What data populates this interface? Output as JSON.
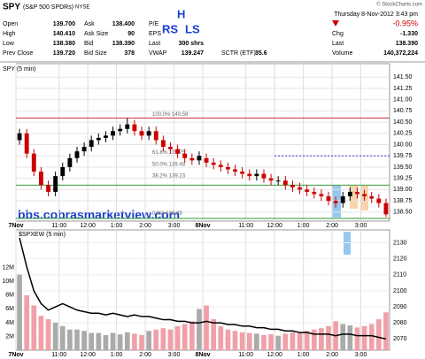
{
  "header": {
    "symbol": "SPY",
    "name": "(S&P 500 SPDRs)",
    "exchange": "NYSE",
    "copyright": "© StockCharts.com",
    "datetime": "Thursday  8-Nov-2012  3:43 pm",
    "change_pct": "-0.95%",
    "fields": [
      [
        "Open",
        "139.700"
      ],
      [
        "High",
        "140.410"
      ],
      [
        "Low",
        "138.380"
      ],
      [
        "Prev Close",
        "139.720"
      ],
      [
        "Ask",
        "138.400"
      ],
      [
        "Ask Size",
        "90"
      ],
      [
        "Bid",
        "138.390"
      ],
      [
        "Bid Size",
        "378"
      ],
      [
        "P/E"
      ],
      [
        "EPS"
      ],
      [
        "Last",
        "300 shrs"
      ],
      [
        "VWAP",
        "139.247"
      ],
      [
        "SCTR (ETF):",
        "35.6"
      ],
      [
        "Chg",
        "-1.330"
      ],
      [
        "Last",
        "138.390"
      ],
      [
        "Volume",
        "140,372,224"
      ]
    ],
    "overlay_labels": [
      "H",
      "RS",
      "LS"
    ],
    "watermark": "bbs.cobrasmarketview.com"
  },
  "chart_data": [
    {
      "type": "candlestick",
      "panel_label": "SPY (5 min)",
      "colors": {
        "up": "#000000",
        "down": "#cc0000"
      },
      "open": [
        140.1,
        140.25,
        139.8,
        139.4,
        139.1,
        138.95,
        139.3,
        139.5,
        139.7,
        139.85,
        139.95,
        140.1,
        140.15,
        140.2,
        140.3,
        140.35,
        140.45,
        140.3,
        140.2,
        140.3,
        140.1,
        139.95,
        139.9,
        139.8,
        139.7,
        139.65,
        139.7,
        139.6,
        139.55,
        139.5,
        139.45,
        139.4,
        139.35,
        139.3,
        139.35,
        139.25,
        139.2,
        139.2,
        139.1,
        139.05,
        139.0,
        138.95,
        138.9,
        138.85,
        138.75,
        138.7,
        138.85,
        138.95,
        138.9,
        138.85,
        138.8,
        138.7
      ],
      "high": [
        140.35,
        140.35,
        139.9,
        139.5,
        139.2,
        139.4,
        139.6,
        139.8,
        139.95,
        140.05,
        140.2,
        140.25,
        140.3,
        140.4,
        140.45,
        140.59,
        140.55,
        140.4,
        140.4,
        140.4,
        140.2,
        140.05,
        140.0,
        139.9,
        139.8,
        139.85,
        139.8,
        139.7,
        139.65,
        139.6,
        139.55,
        139.5,
        139.45,
        139.45,
        139.45,
        139.35,
        139.3,
        139.3,
        139.2,
        139.15,
        139.1,
        139.05,
        139.0,
        138.95,
        138.85,
        138.95,
        139.05,
        139.05,
        139.0,
        138.95,
        138.9,
        138.8
      ],
      "low": [
        140.0,
        139.7,
        139.3,
        139.0,
        138.85,
        138.85,
        139.2,
        139.4,
        139.6,
        139.75,
        139.85,
        140.0,
        140.05,
        140.1,
        140.2,
        140.25,
        140.2,
        140.1,
        140.1,
        140.0,
        139.85,
        139.8,
        139.7,
        139.6,
        139.55,
        139.55,
        139.5,
        139.45,
        139.4,
        139.35,
        139.3,
        139.25,
        139.2,
        139.2,
        139.15,
        139.1,
        139.1,
        139.0,
        138.95,
        138.9,
        138.85,
        138.8,
        138.75,
        138.65,
        138.6,
        138.6,
        138.75,
        138.8,
        138.75,
        138.7,
        138.6,
        138.39
      ],
      "close": [
        140.25,
        139.8,
        139.4,
        139.1,
        138.95,
        139.3,
        139.5,
        139.7,
        139.85,
        139.95,
        140.1,
        140.15,
        140.2,
        140.3,
        140.35,
        140.45,
        140.3,
        140.2,
        140.3,
        140.1,
        139.95,
        139.9,
        139.8,
        139.7,
        139.65,
        139.75,
        139.6,
        139.55,
        139.5,
        139.45,
        139.4,
        139.35,
        139.3,
        139.35,
        139.25,
        139.2,
        139.2,
        139.1,
        139.05,
        139.0,
        138.95,
        138.9,
        138.85,
        138.75,
        138.7,
        138.85,
        138.95,
        138.9,
        138.85,
        138.8,
        138.7,
        138.45
      ],
      "xlim": [
        0,
        52
      ],
      "xticks": [
        {
          "value": 0,
          "label": "7Nov"
        },
        {
          "value": 6,
          "label": "11:00"
        },
        {
          "value": 10,
          "label": "12:00"
        },
        {
          "value": 14,
          "label": "1:00"
        },
        {
          "value": 18,
          "label": "2:00"
        },
        {
          "value": 22,
          "label": "3:00"
        },
        {
          "value": 26,
          "label": "8Nov"
        },
        {
          "value": 32,
          "label": "11:00"
        },
        {
          "value": 36,
          "label": "12:00"
        },
        {
          "value": 40,
          "label": "1:00"
        },
        {
          "value": 44,
          "label": "2:00"
        },
        {
          "value": 48,
          "label": "3:00"
        }
      ],
      "ylim": [
        138.3,
        141.8
      ],
      "yticks": [
        {
          "value": 138.5,
          "label": "138.50"
        },
        {
          "value": 138.75,
          "label": "138.75"
        },
        {
          "value": 139,
          "label": "139.00"
        },
        {
          "value": 139.25,
          "label": "139.25"
        },
        {
          "value": 139.5,
          "label": "139.50"
        },
        {
          "value": 139.75,
          "label": "139.75"
        },
        {
          "value": 140,
          "label": "140.00"
        },
        {
          "value": 140.25,
          "label": "140.25"
        },
        {
          "value": 140.5,
          "label": "140.50"
        },
        {
          "value": 140.75,
          "label": "140.75"
        },
        {
          "value": 141,
          "label": "141.00"
        },
        {
          "value": 141.25,
          "label": "141.25"
        },
        {
          "value": 141.5,
          "label": "141.50"
        }
      ],
      "grid": true,
      "levels": [
        {
          "value": 140.59,
          "color": "#cc3333"
        },
        {
          "value": 139.1,
          "color": "#339933"
        },
        {
          "value": 138.36,
          "color": "#339933"
        },
        {
          "value": 139.75,
          "color": "#3333cc",
          "dashed": true
        }
      ],
      "annotations": [
        {
          "text": "100.0% 140.59",
          "value": 140.59
        },
        {
          "text": "61.8% 139.75",
          "value": 139.75
        },
        {
          "text": "50.0% 139.48",
          "value": 139.48
        },
        {
          "text": "38.2% 139.23",
          "value": 139.23
        },
        {
          "text": "0.0% 138.39",
          "value": 138.39
        }
      ]
    },
    {
      "type": "volume-line",
      "panel_label": "$SPXEW (5 min)",
      "colors": {
        "up": "#aaaaaa",
        "down": "#f0a0a8"
      },
      "series": [
        {
          "values": [
            11000000,
            8000000,
            6500000,
            5000000,
            4500000,
            4000000,
            3500000,
            3000000,
            3000000,
            2800000,
            2500000,
            2500000,
            2200000,
            2500000,
            2300000,
            2600000,
            2400000,
            2200000,
            2800000,
            3000000,
            3200000,
            3000000,
            3500000,
            3800000,
            4200000,
            6000000,
            6500000,
            4500000,
            3500000,
            3000000,
            2800000,
            2600000,
            2500000,
            2400000,
            2200000,
            2300000,
            2100000,
            2400000,
            2600000,
            2500000,
            2800000,
            3000000,
            3200000,
            3500000,
            4200000,
            3800000,
            3600000,
            3300000,
            3500000,
            3800000,
            4500000,
            5500000
          ]
        },
        {
          "values": [
            2133,
            2115,
            2100,
            2092,
            2088,
            2090,
            2092,
            2090,
            2088,
            2087,
            2086,
            2086,
            2085,
            2086,
            2085,
            2084,
            2085,
            2084,
            2084,
            2083,
            2082,
            2082,
            2081,
            2081,
            2080,
            2080,
            2081,
            2080,
            2080,
            2079,
            2079,
            2078,
            2078,
            2077,
            2077,
            2076,
            2076,
            2075,
            2075,
            2074,
            2074,
            2073,
            2073,
            2073,
            2072,
            2073,
            2073,
            2072,
            2072,
            2072,
            2071,
            2070
          ],
          "color": "#000000",
          "axis": "y2"
        }
      ],
      "ylim": [
        0,
        17500000
      ],
      "yticks": [
        {
          "value": 2000000,
          "label": "2M"
        },
        {
          "value": 4000000,
          "label": "4M"
        },
        {
          "value": 6000000,
          "label": "6M"
        },
        {
          "value": 8000000,
          "label": "8M"
        },
        {
          "value": 10000000,
          "label": "10M"
        },
        {
          "value": 12000000,
          "label": "12M"
        }
      ],
      "y2lim": [
        2063,
        2138
      ],
      "y2ticks": [
        2070,
        2080,
        2090,
        2100,
        2110,
        2120,
        2130
      ]
    }
  ]
}
